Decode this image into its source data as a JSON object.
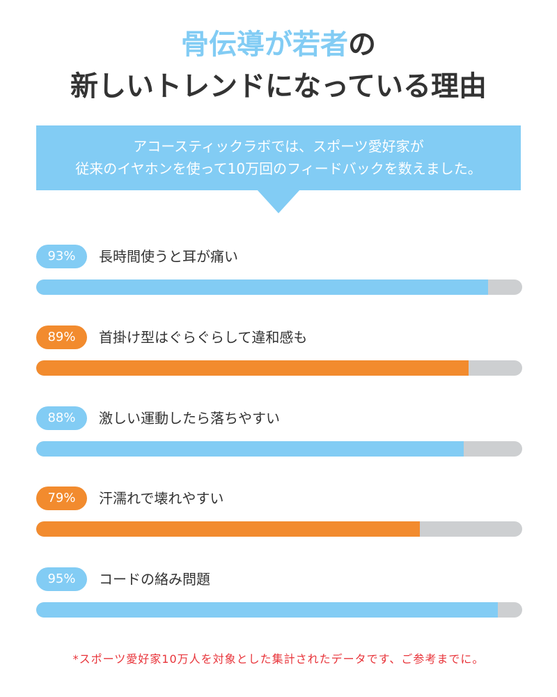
{
  "headline": {
    "line1_accent": "骨伝導が若者",
    "line1_rest": "の",
    "line2": "新しいトレンドになっている理由"
  },
  "banner": {
    "line1": "アコースティックラボでは、スポーツ愛好家が",
    "line2": "従来のイヤホンを使って10万回のフィードバックを数えました。"
  },
  "stats": [
    {
      "percent_label": "93%",
      "value": 0.93,
      "label": "長時間使うと耳が痛い",
      "color": "#82ccf4"
    },
    {
      "percent_label": "89%",
      "value": 0.89,
      "label": "首掛け型はぐらぐらして違和感も",
      "color": "#f28b2e"
    },
    {
      "percent_label": "88%",
      "value": 0.88,
      "label": "激しい運動したら落ちやすい",
      "color": "#82ccf4"
    },
    {
      "percent_label": "79%",
      "value": 0.79,
      "label": "汗濡れで壊れやすい",
      "color": "#f28b2e"
    },
    {
      "percent_label": "95%",
      "value": 0.95,
      "label": "コードの絡み問題",
      "color": "#82ccf4"
    }
  ],
  "colors": {
    "accent_blue": "#82ccf4",
    "accent_orange": "#f28b2e",
    "track_gray": "#cdcfd1",
    "footnote_red": "#e8343a"
  },
  "footnote": "*スポーツ愛好家10万人を対象とした集計されたデータです、ご参考までに。"
}
